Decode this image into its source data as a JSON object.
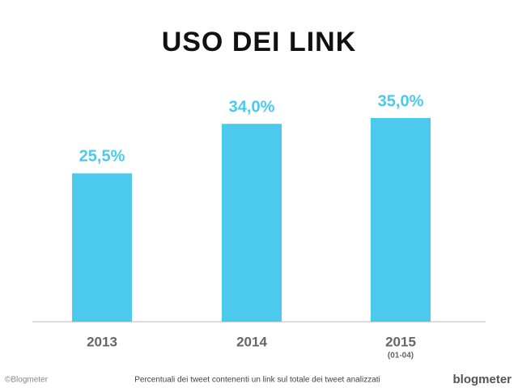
{
  "chart_data": {
    "type": "bar",
    "title": "USO DEI LINK",
    "categories": [
      "2013",
      "2014",
      "2015"
    ],
    "category_notes": [
      null,
      null,
      "(01-04)"
    ],
    "values": [
      25.5,
      34.0,
      35.0
    ],
    "value_labels": [
      "25,5%",
      "34,0%",
      "35,0%"
    ],
    "color": "#4ccaee",
    "footnote": "Percentuali dei tweet contenenti un link sul totale dei tweet analizzati",
    "copyright": "©Blogmeter",
    "logo": "blogmeter"
  }
}
